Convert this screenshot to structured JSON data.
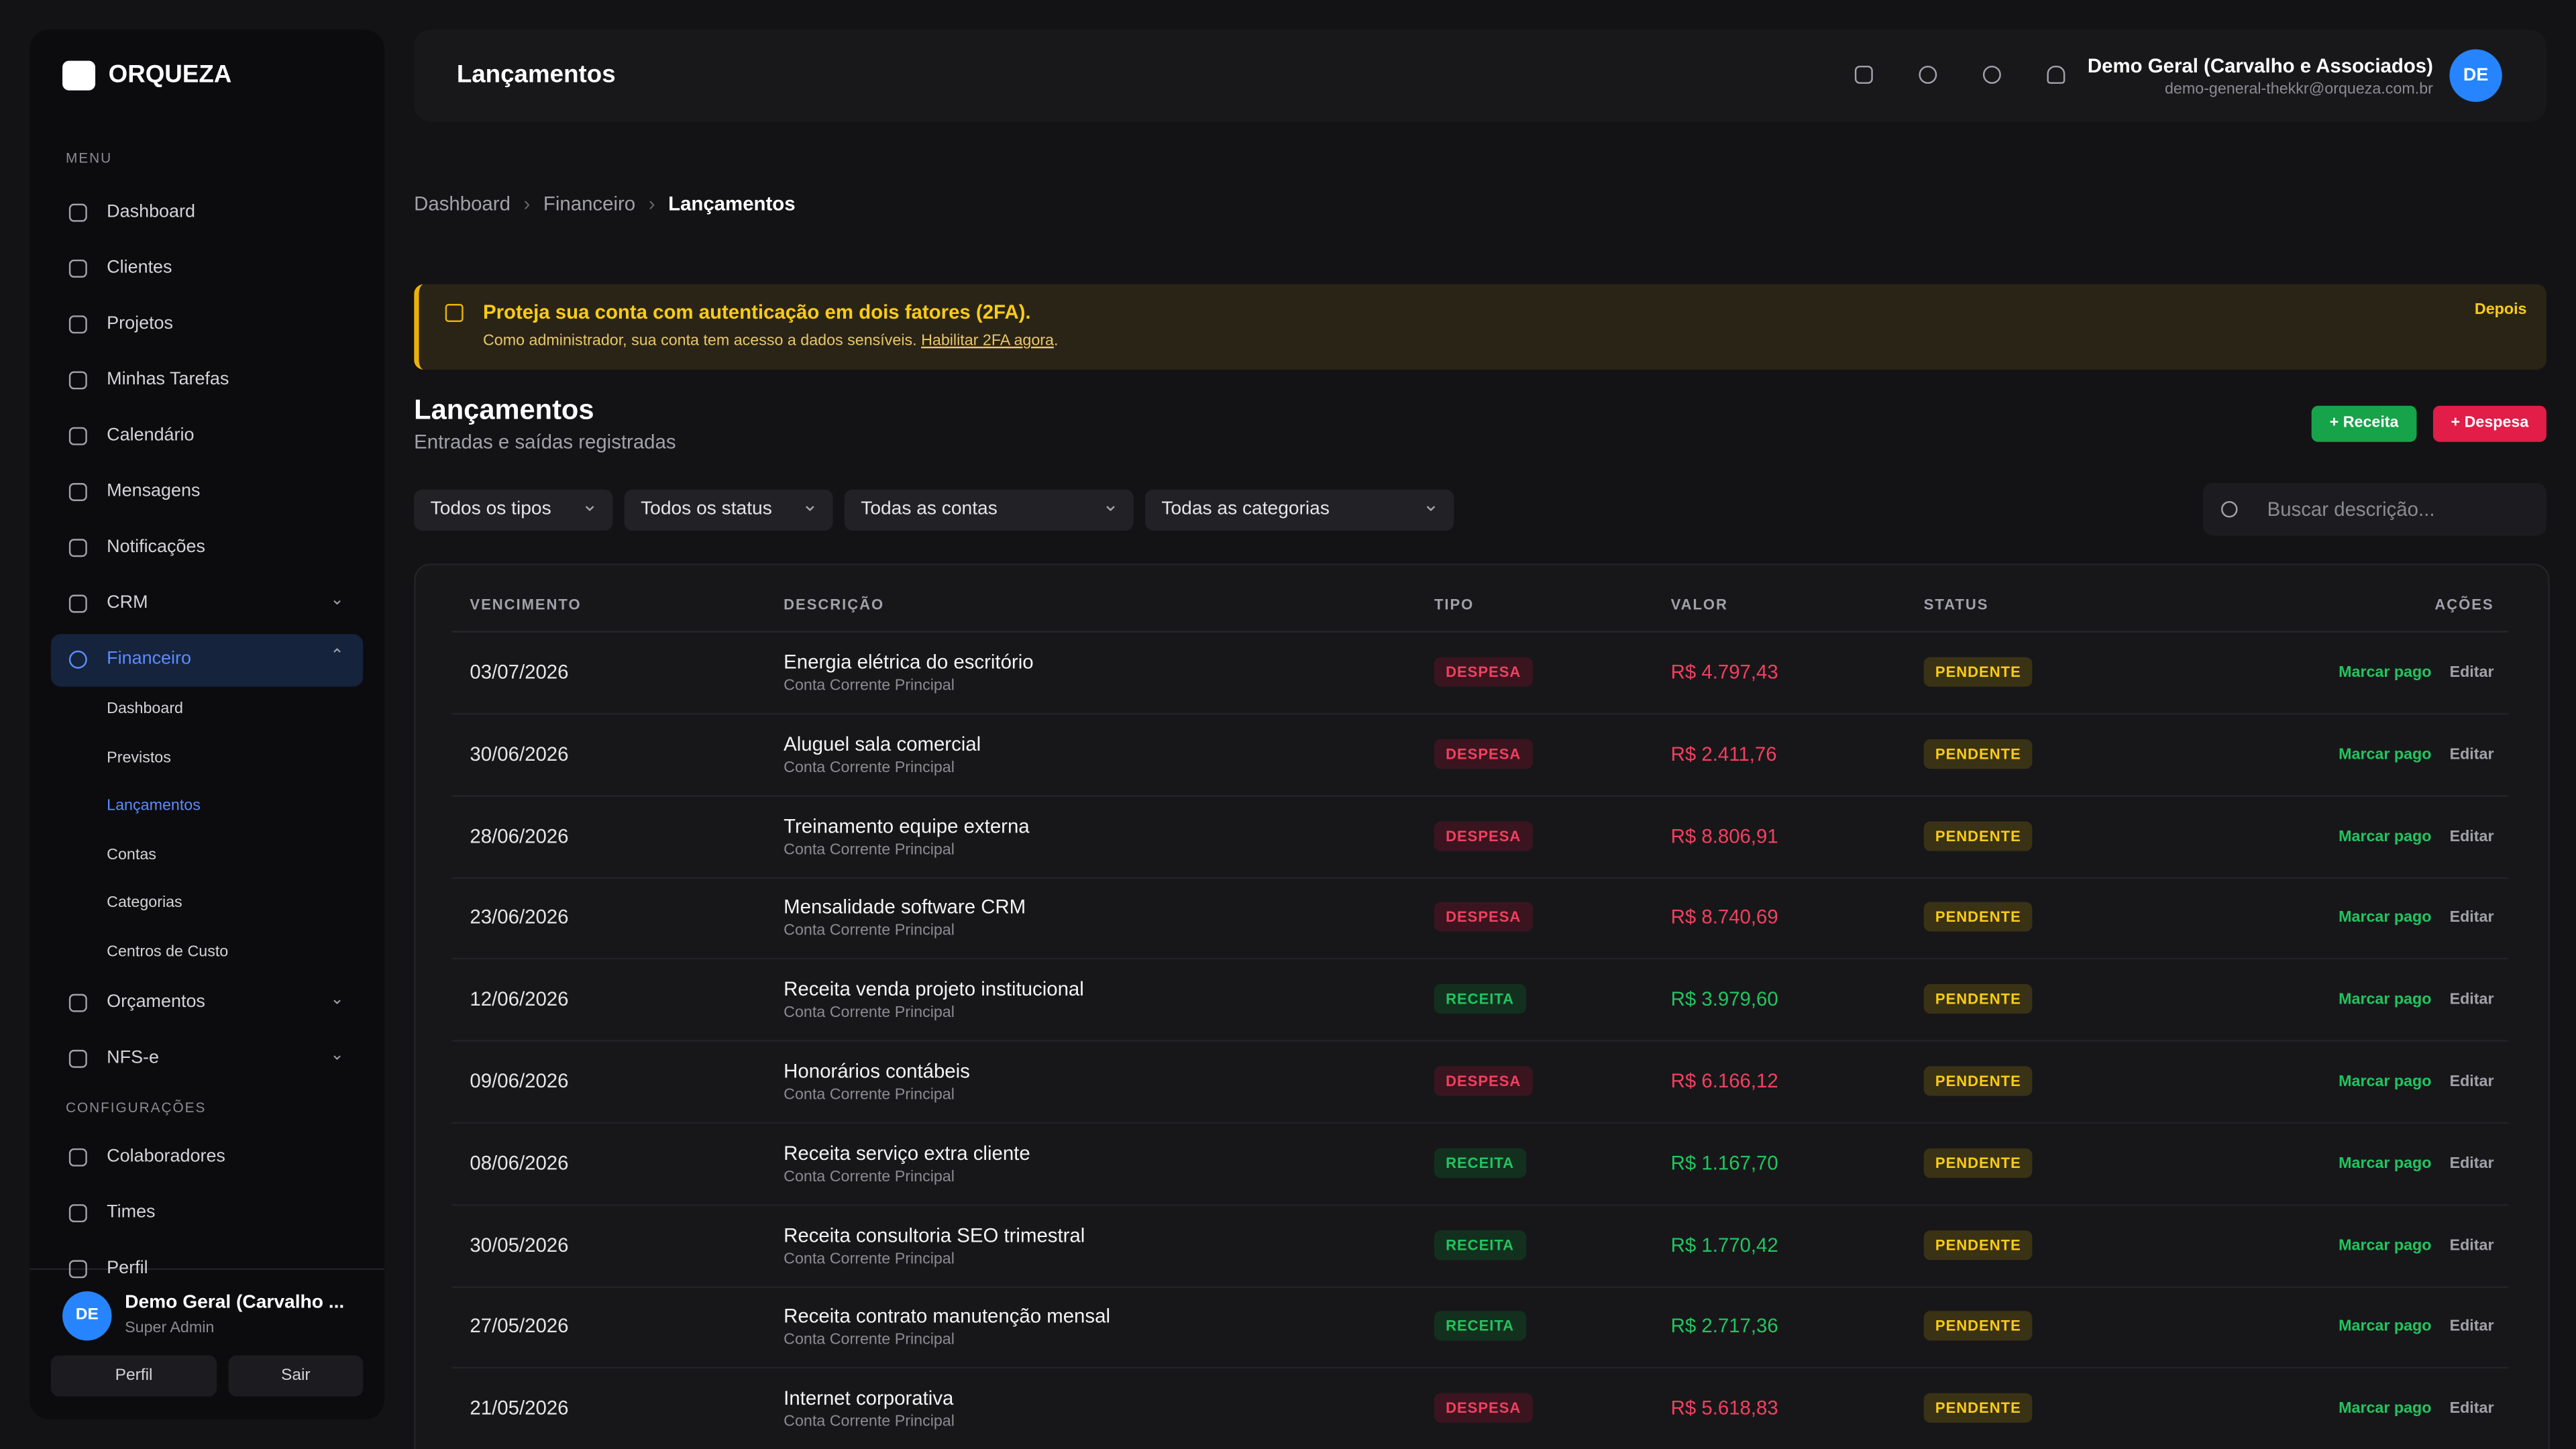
{
  "sidebar": {
    "logo": "ORQUEZA",
    "menu_label": "MENU",
    "items": [
      "Dashboard",
      "Clientes",
      "Projetos",
      "Minhas Tarefas",
      "Calendário",
      "Mensagens",
      "Notificações",
      "CRM",
      "Financeiro"
    ],
    "submenu": [
      "Dashboard",
      "Previstos",
      "Lançamentos",
      "Contas",
      "Categorias",
      "Centros de Custo"
    ],
    "items2": [
      "Orçamentos",
      "NFS-e"
    ],
    "config_label": "CONFIGURAÇÕES",
    "config_items": [
      "Colaboradores",
      "Times",
      "Perfil"
    ],
    "user": {
      "initials": "DE",
      "name": "Demo Geral (Carvalho ...",
      "role": "Super Admin"
    },
    "buttons": [
      "Perfil",
      "Sair"
    ]
  },
  "header": {
    "title": "Lançamentos",
    "user_name": "Demo Geral (Carvalho e Associados)",
    "user_email": "demo-general-thekkr@orqueza.com.br",
    "initials": "DE"
  },
  "breadcrumb": [
    "Dashboard",
    "Financeiro",
    "Lançamentos"
  ],
  "alert": {
    "title": "Proteja sua conta com autenticação em dois fatores (2FA).",
    "text": "Como administrador, sua conta tem acesso a dados sensíveis.",
    "link": "Habilitar 2FA agora",
    "dismiss": "Depois"
  },
  "page": {
    "title": "Lançamentos",
    "subtitle": "Entradas e saídas registradas",
    "buttons": [
      "+ Receita",
      "+ Despesa"
    ]
  },
  "filters": [
    "Todos os tipos",
    "Todos os status",
    "Todas as contas",
    "Todas as categorias"
  ],
  "search": "Buscar descrição...",
  "table": {
    "headers": [
      "VENCIMENTO",
      "DESCRIÇÃO",
      "TIPO",
      "VALOR",
      "STATUS",
      "AÇÕES"
    ],
    "actions": [
      "Marcar pago",
      "Editar"
    ],
    "rows": [
      [
        "03/07/2026",
        "Energia elétrica do escritório",
        "Conta Corrente Principal",
        "DESPESA",
        "R$ 4.797,43",
        "PENDENTE"
      ],
      [
        "30/06/2026",
        "Aluguel sala comercial",
        "Conta Corrente Principal",
        "DESPESA",
        "R$ 2.411,76",
        "PENDENTE"
      ],
      [
        "28/06/2026",
        "Treinamento equipe externa",
        "Conta Corrente Principal",
        "DESPESA",
        "R$ 8.806,91",
        "PENDENTE"
      ],
      [
        "23/06/2026",
        "Mensalidade software CRM",
        "Conta Corrente Principal",
        "DESPESA",
        "R$ 8.740,69",
        "PENDENTE"
      ],
      [
        "12/06/2026",
        "Receita venda projeto institucional",
        "Conta Corrente Principal",
        "RECEITA",
        "R$ 3.979,60",
        "PENDENTE"
      ],
      [
        "09/06/2026",
        "Honorários contábeis",
        "Conta Corrente Principal",
        "DESPESA",
        "R$ 6.166,12",
        "PENDENTE"
      ],
      [
        "08/06/2026",
        "Receita serviço extra cliente",
        "Conta Corrente Principal",
        "RECEITA",
        "R$ 1.167,70",
        "PENDENTE"
      ],
      [
        "30/05/2026",
        "Receita consultoria SEO trimestral",
        "Conta Corrente Principal",
        "RECEITA",
        "R$ 1.770,42",
        "PENDENTE"
      ],
      [
        "27/05/2026",
        "Receita contrato manutenção mensal",
        "Conta Corrente Principal",
        "RECEITA",
        "R$ 2.717,36",
        "PENDENTE"
      ],
      [
        "21/05/2026",
        "Internet corporativa",
        "Conta Corrente Principal",
        "DESPESA",
        "R$ 5.618,83",
        "PENDENTE"
      ]
    ]
  }
}
